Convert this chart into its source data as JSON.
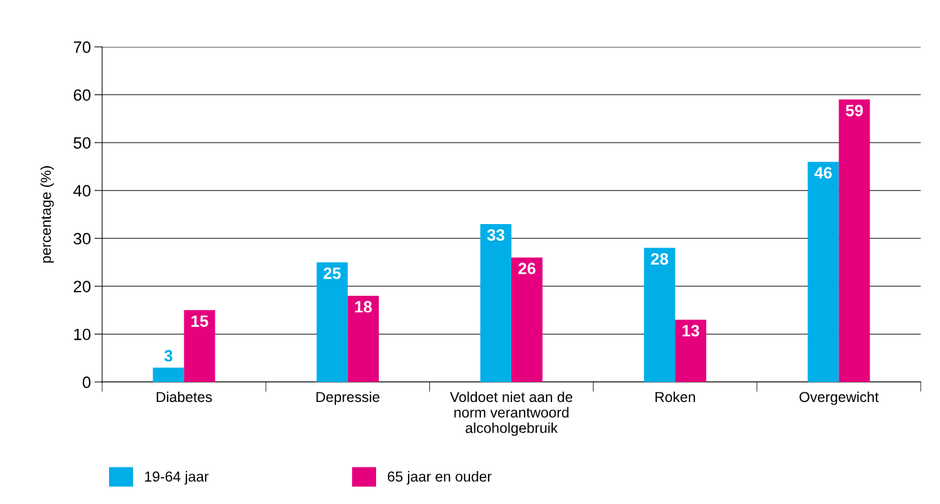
{
  "chart_data": {
    "type": "bar",
    "ylabel": "percentage (%)",
    "categories": [
      "Diabetes",
      "Depressie",
      "Voldoet niet aan de\nnorm verantwoord\nalcoholgebruik",
      "Roken",
      "Overgewicht"
    ],
    "series": [
      {
        "name": "19-64 jaar",
        "color": "#00aee8",
        "values": [
          3,
          25,
          33,
          28,
          46
        ]
      },
      {
        "name": "65 jaar en ouder",
        "color": "#e5007d",
        "values": [
          15,
          18,
          26,
          13,
          59
        ]
      }
    ],
    "ylim": [
      0,
      70
    ],
    "yticks": [
      0,
      10,
      20,
      30,
      40,
      50,
      60,
      70
    ],
    "grid": "y",
    "legend": "bottom left",
    "data_labels": true
  }
}
